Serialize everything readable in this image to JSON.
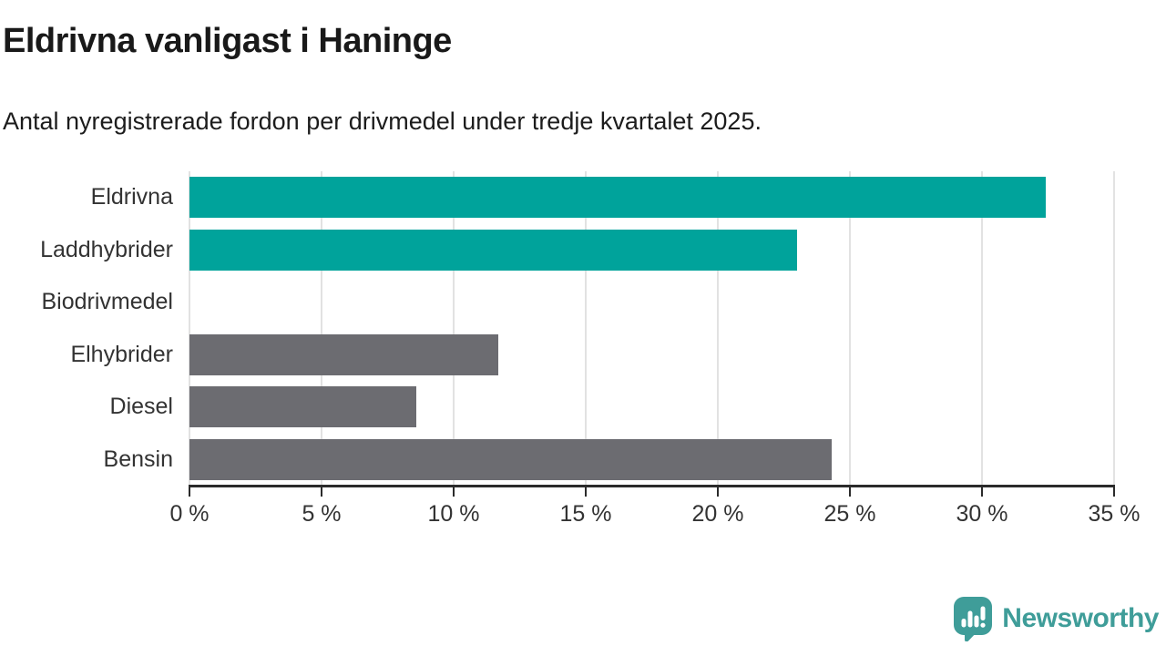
{
  "chart_data": {
    "type": "bar",
    "orientation": "horizontal",
    "title": "Eldrivna vanligast i Haninge",
    "subtitle": "Antal nyregistrerade fordon per drivmedel under tredje kvartalet 2025.",
    "categories": [
      "Eldrivna",
      "Laddhybrider",
      "Biodrivmedel",
      "Elhybrider",
      "Diesel",
      "Bensin"
    ],
    "values": [
      32.4,
      23.0,
      0,
      11.7,
      8.6,
      24.3
    ],
    "unit": "%",
    "xlim": [
      0,
      35
    ],
    "x_ticks": [
      0,
      5,
      10,
      15,
      20,
      25,
      30,
      35
    ],
    "x_tick_labels": [
      "0 %",
      "5 %",
      "10 %",
      "15 %",
      "20 %",
      "25 %",
      "30 %",
      "35 %"
    ],
    "bar_colors": [
      "#00a39b",
      "#00a39b",
      "#6c6c71",
      "#6c6c71",
      "#6c6c71",
      "#6c6c71"
    ],
    "highlight_color": "#00a39b",
    "default_color": "#6c6c71",
    "grid": true,
    "legend": "none"
  },
  "footer": {
    "brand": "Newsworthy",
    "logo_color": "#3f9d99"
  }
}
